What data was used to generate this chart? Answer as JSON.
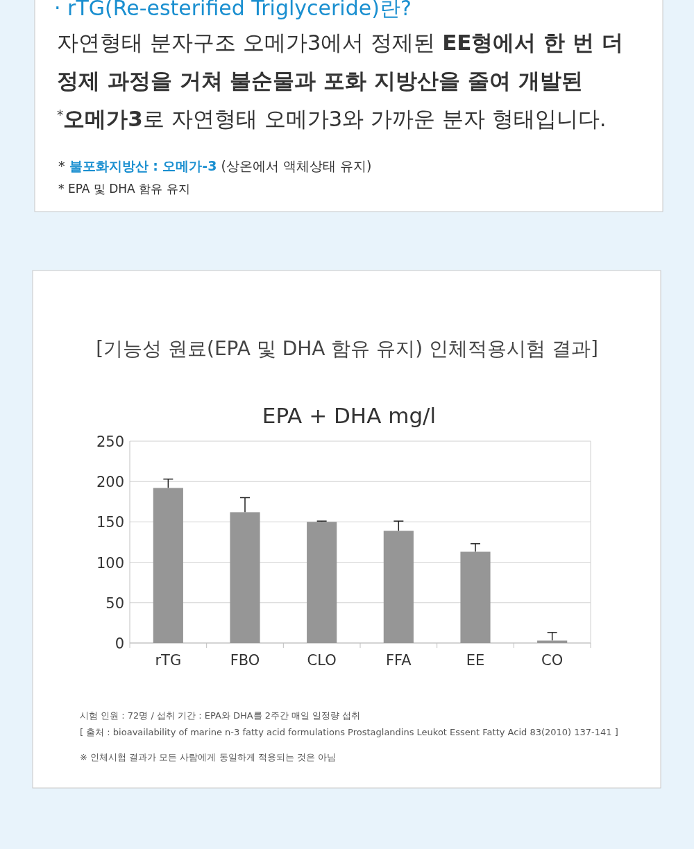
{
  "chart_data": [
    {
      "type": "other",
      "title": "· rTG(Re-esterified Triglyceride)란?",
      "annotations": [
        "자연형태 분자구조 오메가3에서 정제된 **EE형에서 한 번 더**",
        "**정제 과정을 거쳐 불순물과 포화 지방산을 줄여 개발된**",
        "$^{*}$**오메가3**로 자연형태 오메가3와 가까운 분자 형태입니다.",
        "* **불포화지방산 : 오메가-3** (상온에서 액체상태 유지)",
        "* EPA 및 DHA 함유 유지"
      ]
    },
    {
      "type": "bar",
      "title": "[기능성 원료(EPA 및 DHA 함유 유지) 인체적용시험 결과]",
      "subtitle": "EPA + DHA mg/l",
      "categories": [
        "rTG",
        "FBO",
        "CLO",
        "FFA",
        "EE",
        "CO"
      ],
      "values": [
        192,
        162,
        150,
        139,
        113,
        3
      ],
      "errors": [
        [
          192,
          203
        ],
        [
          162,
          180
        ],
        [
          150,
          151
        ],
        [
          139,
          151
        ],
        [
          113,
          123
        ],
        [
          3,
          13
        ]
      ],
      "color": "#969696",
      "ylim": [
        0,
        250
      ],
      "yticks": [
        0,
        50,
        100,
        150,
        200,
        250
      ],
      "grid": "y",
      "annotations": [
        "시험 인원 : 72명 / 섭취 기간 : EPA와 DHA를 2주간 매일 일정량 섭취",
        "[ 출처 : bioavailability of marine n-3 fatty acid formulations Prostaglandins  Leukot Essent Fatty Acid 83(2010) 137-141 ]",
        "※ 인체시험 결과가 모든 사람에게 동일하게 적용되는 것은 아님"
      ]
    }
  ]
}
